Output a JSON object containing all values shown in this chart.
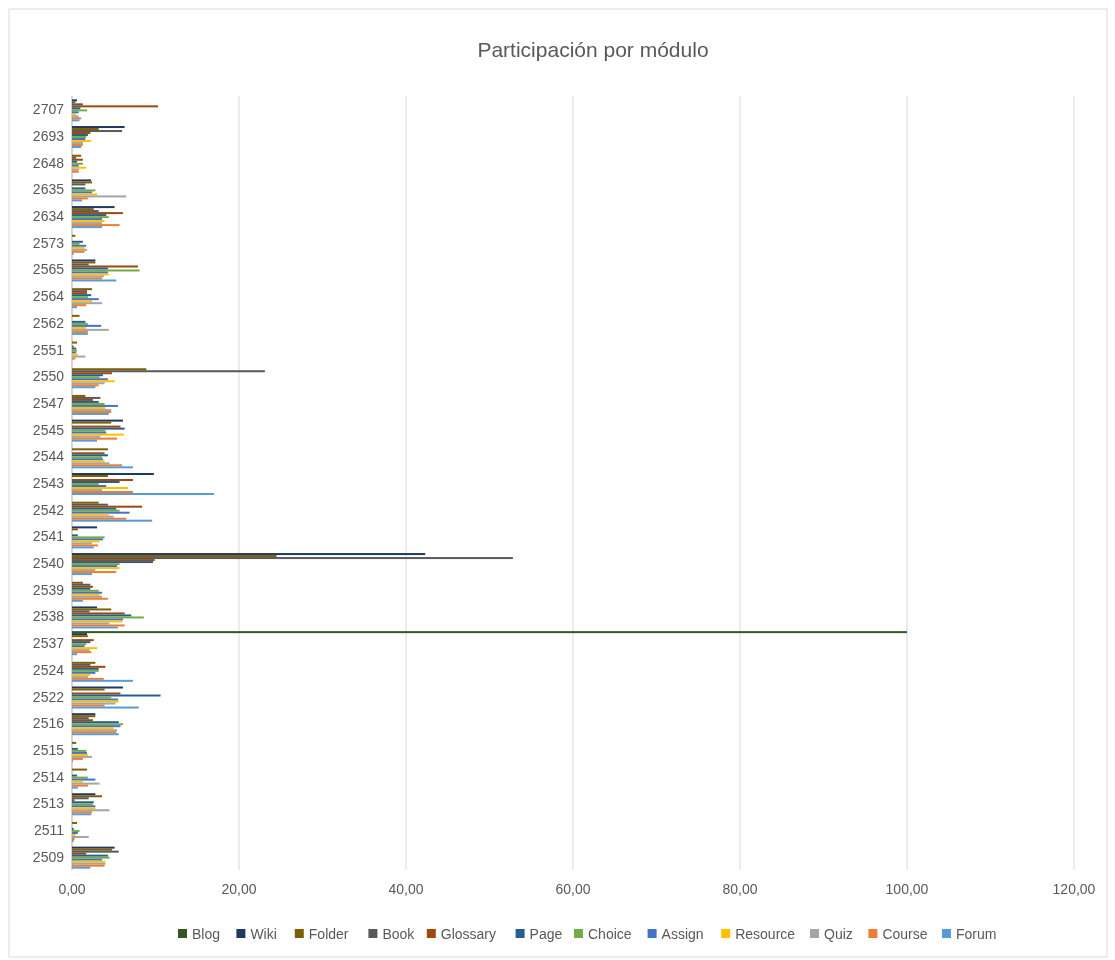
{
  "chart_data": {
    "type": "bar",
    "orientation": "horizontal",
    "title": "Participación por módulo",
    "categories": [
      "2707",
      "2693",
      "2648",
      "2635",
      "2634",
      "2573",
      "2565",
      "2564",
      "2562",
      "2551",
      "2550",
      "2547",
      "2545",
      "2544",
      "2543",
      "2542",
      "2541",
      "2540",
      "2539",
      "2538",
      "2537",
      "2524",
      "2522",
      "2516",
      "2515",
      "2514",
      "2513",
      "2511",
      "2509"
    ],
    "series": [
      {
        "name": "Blog",
        "color": "#375623",
        "values": [
          0,
          0,
          0,
          0,
          0,
          0,
          0,
          0,
          0,
          0,
          0,
          0,
          0,
          0,
          0,
          0,
          0,
          0,
          0,
          0,
          100,
          0,
          0,
          0,
          0,
          0,
          0,
          0,
          0
        ]
      },
      {
        "name": "Wiki",
        "color": "#203864",
        "values": [
          0.6,
          6.3,
          0,
          2.3,
          5.1,
          0,
          2.8,
          0,
          0,
          0,
          0,
          0,
          6.1,
          0,
          9.8,
          0,
          3.0,
          42.3,
          0,
          3.0,
          1.8,
          0,
          6.1,
          2.8,
          0,
          0,
          2.8,
          0,
          5.1
        ]
      },
      {
        "name": "Folder",
        "color": "#7f6000",
        "values": [
          0.4,
          3.2,
          1.1,
          2.4,
          2.6,
          0.4,
          2.8,
          2.4,
          0.9,
          0.6,
          8.9,
          1.6,
          4.7,
          4.3,
          4.3,
          3.2,
          0.7,
          24.5,
          1.3,
          4.7,
          1.9,
          2.8,
          3.9,
          2.8,
          0.5,
          1.8,
          3.6,
          0.6,
          4.8
        ]
      },
      {
        "name": "Book",
        "color": "#595959",
        "values": [
          1.3,
          6.0,
          0.5,
          1.6,
          3.2,
          0,
          2.0,
          1.8,
          0,
          0,
          23.1,
          3.4,
          0,
          0,
          0,
          4.3,
          0,
          52.8,
          2.2,
          2.1,
          0,
          2.2,
          0,
          2.0,
          0,
          0,
          2.0,
          0,
          5.6
        ]
      },
      {
        "name": "Glossary",
        "color": "#9e480e",
        "values": [
          10.3,
          2.2,
          1.3,
          0,
          6.1,
          0,
          7.9,
          1.8,
          0,
          0.2,
          4.8,
          2.5,
          5.8,
          3.9,
          7.3,
          8.4,
          0,
          9.9,
          2.5,
          6.3,
          2.6,
          4.0,
          5.8,
          2.5,
          0,
          0,
          0.3,
          0,
          1.7
        ]
      },
      {
        "name": "Page",
        "color": "#255e91",
        "values": [
          1.0,
          1.9,
          0.6,
          1.6,
          4.1,
          1.3,
          4.3,
          2.3,
          1.6,
          0.5,
          3.7,
          3.2,
          6.3,
          4.3,
          5.7,
          5.3,
          0.7,
          9.7,
          2.2,
          7.1,
          2.2,
          3.2,
          10.6,
          5.6,
          0.7,
          0.6,
          2.6,
          0.2,
          4.3
        ]
      },
      {
        "name": "Choice",
        "color": "#70ad47",
        "values": [
          1.8,
          1.7,
          1.3,
          2.8,
          4.4,
          0.9,
          8.1,
          1.9,
          1.9,
          0.6,
          3.3,
          3.9,
          4.0,
          3.6,
          3.2,
          5.7,
          3.9,
          5.7,
          3.2,
          8.6,
          1.7,
          3.2,
          4.7,
          6.1,
          1.7,
          1.9,
          2.5,
          0.9,
          4.5
        ]
      },
      {
        "name": "Assign",
        "color": "#4472c4",
        "values": [
          0.8,
          1.6,
          0.8,
          2.4,
          3.6,
          1.7,
          4.3,
          3.2,
          3.5,
          0.5,
          4.3,
          5.5,
          4.1,
          3.7,
          4.1,
          6.9,
          3.7,
          5.4,
          3.6,
          6.1,
          1.5,
          2.8,
          5.5,
          5.8,
          1.8,
          2.8,
          2.8,
          0.7,
          3.6
        ]
      },
      {
        "name": "Resource",
        "color": "#ffc000",
        "values": [
          0.5,
          2.3,
          1.7,
          3.0,
          3.9,
          1.5,
          4.4,
          2.4,
          1.7,
          0.7,
          5.1,
          4.0,
          6.2,
          3.9,
          6.7,
          4.4,
          3.3,
          5.7,
          3.3,
          6.0,
          3.0,
          2.2,
          5.6,
          5.0,
          1.9,
          1.3,
          2.8,
          0.4,
          4.0
        ]
      },
      {
        "name": "Quiz",
        "color": "#a5a5a5",
        "values": [
          0.8,
          1.3,
          0.8,
          6.5,
          3.6,
          1.8,
          3.8,
          3.6,
          4.4,
          1.6,
          3.9,
          4.7,
          3.4,
          4.5,
          3.6,
          5.0,
          2.4,
          2.8,
          3.6,
          4.5,
          2.1,
          1.9,
          5.2,
          5.4,
          2.4,
          3.3,
          4.5,
          2.0,
          4.0
        ]
      },
      {
        "name": "Course",
        "color": "#ed7d31",
        "values": [
          1.1,
          1.3,
          0.8,
          1.9,
          5.7,
          1.5,
          3.6,
          1.7,
          1.9,
          0.4,
          3.2,
          4.7,
          5.4,
          6.0,
          7.3,
          6.5,
          3.1,
          5.3,
          4.3,
          6.3,
          2.3,
          3.8,
          3.9,
          5.3,
          1.3,
          1.9,
          2.4,
          0.3,
          3.9
        ]
      },
      {
        "name": "Forum",
        "color": "#5b9bd5",
        "values": [
          0.9,
          1.1,
          0,
          1.2,
          3.6,
          0.2,
          5.3,
          0.6,
          1.9,
          0,
          2.8,
          4.4,
          3.0,
          7.3,
          17.0,
          9.6,
          2.6,
          2.4,
          1.3,
          5.5,
          0.6,
          7.3,
          8.0,
          5.6,
          0.1,
          0.7,
          2.3,
          0.2,
          2.2
        ]
      }
    ],
    "xlim": [
      0,
      120
    ],
    "xticks": [
      {
        "value": 0,
        "label": "0,00"
      },
      {
        "value": 20,
        "label": "20,00"
      },
      {
        "value": 40,
        "label": "40,00"
      },
      {
        "value": 60,
        "label": "60,00"
      },
      {
        "value": 80,
        "label": "80,00"
      },
      {
        "value": 100,
        "label": "100,00"
      },
      {
        "value": 120,
        "label": "120,00"
      }
    ],
    "grid": "x",
    "legend": "bottom"
  }
}
